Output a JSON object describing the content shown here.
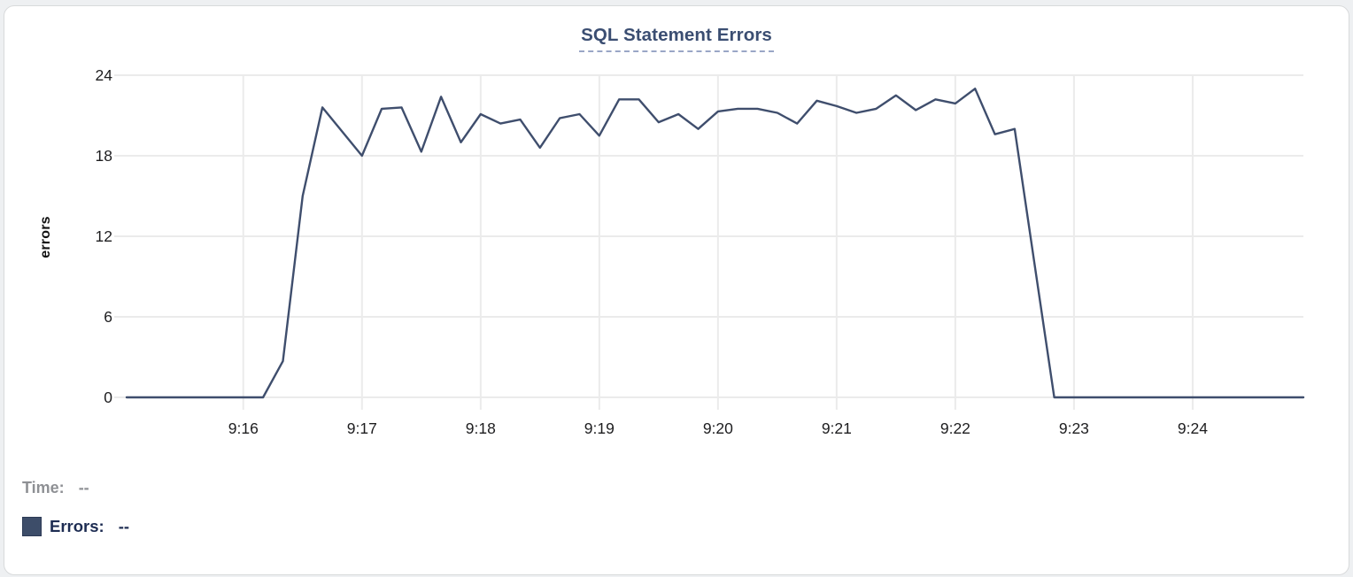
{
  "legend": {
    "time_label": "Time:",
    "time_value": "--",
    "errors_label": "Errors:",
    "errors_value": "--",
    "swatch_color": "#3d4d69"
  },
  "colors": {
    "line": "#3f4e6d",
    "grid": "#ebebeb",
    "tick_text": "#1d1d1f",
    "title_text": "#3b4e72",
    "title_dash": "#9aa6c6",
    "time_legend_text": "#8e9094",
    "errors_legend_text": "#1d2c52"
  },
  "chart_data": {
    "type": "line",
    "title": "SQL Statement Errors",
    "xlabel": "",
    "ylabel": "errors",
    "ylim": [
      0,
      24
    ],
    "y_ticks": [
      0,
      6,
      12,
      18,
      24
    ],
    "x_ticks": [
      "9:16",
      "9:17",
      "9:18",
      "9:19",
      "9:20",
      "9:21",
      "9:22",
      "9:23",
      "9:24"
    ],
    "x_range": [
      "9:15:01",
      "9:24:56"
    ],
    "grid": true,
    "legend_position": "bottom-left",
    "series": [
      {
        "name": "Errors",
        "color": "#3f4e6d",
        "points": [
          [
            "9:15:01",
            0
          ],
          [
            "9:15:10",
            0
          ],
          [
            "9:15:20",
            0
          ],
          [
            "9:15:30",
            0
          ],
          [
            "9:15:40",
            0
          ],
          [
            "9:15:50",
            0
          ],
          [
            "9:16:00",
            0
          ],
          [
            "9:16:10",
            0
          ],
          [
            "9:16:20",
            2.7
          ],
          [
            "9:16:30",
            15
          ],
          [
            "9:16:40",
            21.6
          ],
          [
            "9:16:50",
            19.8
          ],
          [
            "9:17:00",
            18
          ],
          [
            "9:17:10",
            21.5
          ],
          [
            "9:17:20",
            21.6
          ],
          [
            "9:17:30",
            18.3
          ],
          [
            "9:17:40",
            22.4
          ],
          [
            "9:17:50",
            19
          ],
          [
            "9:18:00",
            21.1
          ],
          [
            "9:18:10",
            20.4
          ],
          [
            "9:18:20",
            20.7
          ],
          [
            "9:18:30",
            18.6
          ],
          [
            "9:18:40",
            20.8
          ],
          [
            "9:18:50",
            21.1
          ],
          [
            "9:19:00",
            19.5
          ],
          [
            "9:19:10",
            22.2
          ],
          [
            "9:19:20",
            22.2
          ],
          [
            "9:19:30",
            20.5
          ],
          [
            "9:19:40",
            21.1
          ],
          [
            "9:19:50",
            20
          ],
          [
            "9:20:00",
            21.3
          ],
          [
            "9:20:10",
            21.5
          ],
          [
            "9:20:20",
            21.5
          ],
          [
            "9:20:30",
            21.2
          ],
          [
            "9:20:40",
            20.4
          ],
          [
            "9:20:50",
            22.1
          ],
          [
            "9:21:00",
            21.7
          ],
          [
            "9:21:10",
            21.2
          ],
          [
            "9:21:20",
            21.5
          ],
          [
            "9:21:30",
            22.5
          ],
          [
            "9:21:40",
            21.4
          ],
          [
            "9:21:50",
            22.2
          ],
          [
            "9:22:00",
            21.9
          ],
          [
            "9:22:10",
            23
          ],
          [
            "9:22:20",
            19.6
          ],
          [
            "9:22:30",
            20
          ],
          [
            "9:22:40",
            10
          ],
          [
            "9:22:50",
            0
          ],
          [
            "9:23:00",
            0
          ],
          [
            "9:23:10",
            0
          ],
          [
            "9:23:20",
            0
          ],
          [
            "9:23:30",
            0
          ],
          [
            "9:23:40",
            0
          ],
          [
            "9:23:50",
            0
          ],
          [
            "9:24:00",
            0
          ],
          [
            "9:24:10",
            0
          ],
          [
            "9:24:20",
            0
          ],
          [
            "9:24:30",
            0
          ],
          [
            "9:24:40",
            0
          ],
          [
            "9:24:50",
            0
          ],
          [
            "9:24:56",
            0
          ]
        ]
      }
    ]
  }
}
